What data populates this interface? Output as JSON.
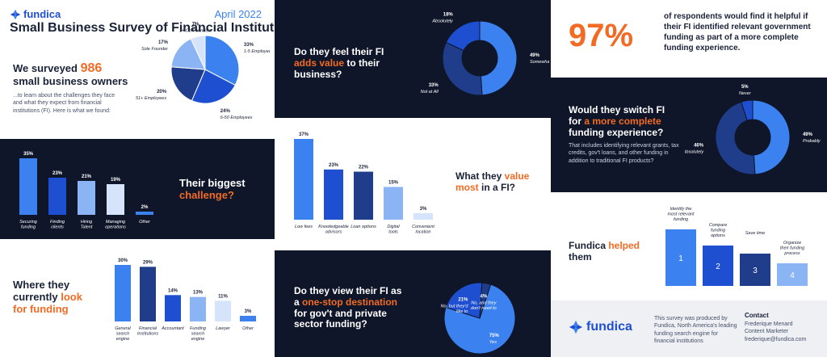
{
  "colors": {
    "navy": "#0f1629",
    "orange": "#f26b24",
    "blue_bright": "#3b82f0",
    "blue_mid": "#1e4fd0",
    "blue_dark": "#1f3d8a",
    "blue_light": "#8ab4f4",
    "blue_pale": "#d6e4fb"
  },
  "header": {
    "brand": "fundica",
    "date": "April 2022",
    "title": "Small Business Survey of Financial Institutions"
  },
  "intro": {
    "line1_pre": "We surveyed ",
    "line1_number": "986",
    "line2": "small business owners",
    "body": "...to learn about the challenges they face and what they expect from financial institutions (FI). Here is what we found:"
  },
  "challenge": {
    "text_pre": "Their biggest",
    "text_highlight": "challenge?"
  },
  "look": {
    "line1": "Where they",
    "line2_pre": "currently ",
    "line2_highlight": "look",
    "line3": "for funding"
  },
  "adds_value": {
    "line1": "Do they feel their FI",
    "line2_highlight": "adds value",
    "line2_post": " to their",
    "line3": "business?"
  },
  "value_most": {
    "line1_pre": "What they ",
    "line1_highlight": "value",
    "line2_highlight": "most",
    "line2_post": " in a FI?"
  },
  "one_stop": {
    "line1": "Do they view their FI as",
    "line2_pre": "a ",
    "line2_highlight": "one-stop destination",
    "line3": "for gov't and private",
    "line4": "sector funding?"
  },
  "stat97": {
    "number": "97%",
    "text": "of respondents would find it helpful if their FI identified relevant government funding as part of a more complete funding experience."
  },
  "switch": {
    "line1": "Would they switch FI",
    "line2_pre": "for ",
    "line2_highlight": "a more complete",
    "line3": "funding experience?",
    "body": "That includes identifying relevant grants, tax credits, gov't loans, and other funding in addition to traditional FI products?"
  },
  "helped": {
    "text_pre": "Fundica ",
    "text_highlight": "helped",
    "text_post": "them",
    "steps": [
      {
        "number": "1",
        "label": "Identify the most relevant funding"
      },
      {
        "number": "2",
        "label": "Compare funding options"
      },
      {
        "number": "3",
        "label": "Save time"
      },
      {
        "number": "4",
        "label": "Organize their funding process"
      }
    ]
  },
  "footer": {
    "brand": "fundica",
    "about": "This survey was produced by Fundica, North America's leading funding search engine for financial institutions",
    "contact_title": "Contact",
    "contact_name": "Frederique Menard",
    "contact_role": "Content Marketer",
    "contact_email": "frederique@fundica.com"
  },
  "chart_data": [
    {
      "id": "company_size",
      "type": "pie",
      "slices": [
        {
          "label": "1-5 Employees",
          "value": 33
        },
        {
          "label": "6-50 Employees",
          "value": 24
        },
        {
          "label": "51+ Employees",
          "value": 20
        },
        {
          "label": "Sole Founder",
          "value": 17
        },
        {
          "label": "1+ Co-Founders",
          "value": 7
        }
      ]
    },
    {
      "id": "biggest_challenge",
      "type": "bar",
      "categories": [
        "Securing funding",
        "Finding clients",
        "Hiring Talent",
        "Managing operations",
        "Other"
      ],
      "values": [
        35,
        23,
        21,
        19,
        2
      ]
    },
    {
      "id": "look_for_funding",
      "type": "bar",
      "categories": [
        "General search engine",
        "Financial Institutions",
        "Accountant",
        "Funding search engine",
        "Lawyer",
        "Other"
      ],
      "values": [
        30,
        29,
        14,
        13,
        11,
        3
      ]
    },
    {
      "id": "adds_value",
      "type": "pie",
      "slices": [
        {
          "label": "Somewhat",
          "value": 49
        },
        {
          "label": "Not at All",
          "value": 33
        },
        {
          "label": "Absolutely",
          "value": 18
        }
      ]
    },
    {
      "id": "value_most",
      "type": "bar",
      "categories": [
        "Low fees",
        "Knowledgeable advisors",
        "Loan options",
        "Digital tools",
        "Convenient location"
      ],
      "values": [
        37,
        23,
        22,
        15,
        3
      ]
    },
    {
      "id": "one_stop",
      "type": "pie",
      "slices": [
        {
          "label": "Yes",
          "value": 75
        },
        {
          "label": "No, but they'd like to",
          "value": 21
        },
        {
          "label": "No, and they don't need to",
          "value": 4
        }
      ]
    },
    {
      "id": "switch_fi",
      "type": "pie",
      "slices": [
        {
          "label": "Probably",
          "value": 49
        },
        {
          "label": "Absolutely",
          "value": 46
        },
        {
          "label": "Never",
          "value": 5
        }
      ]
    }
  ]
}
